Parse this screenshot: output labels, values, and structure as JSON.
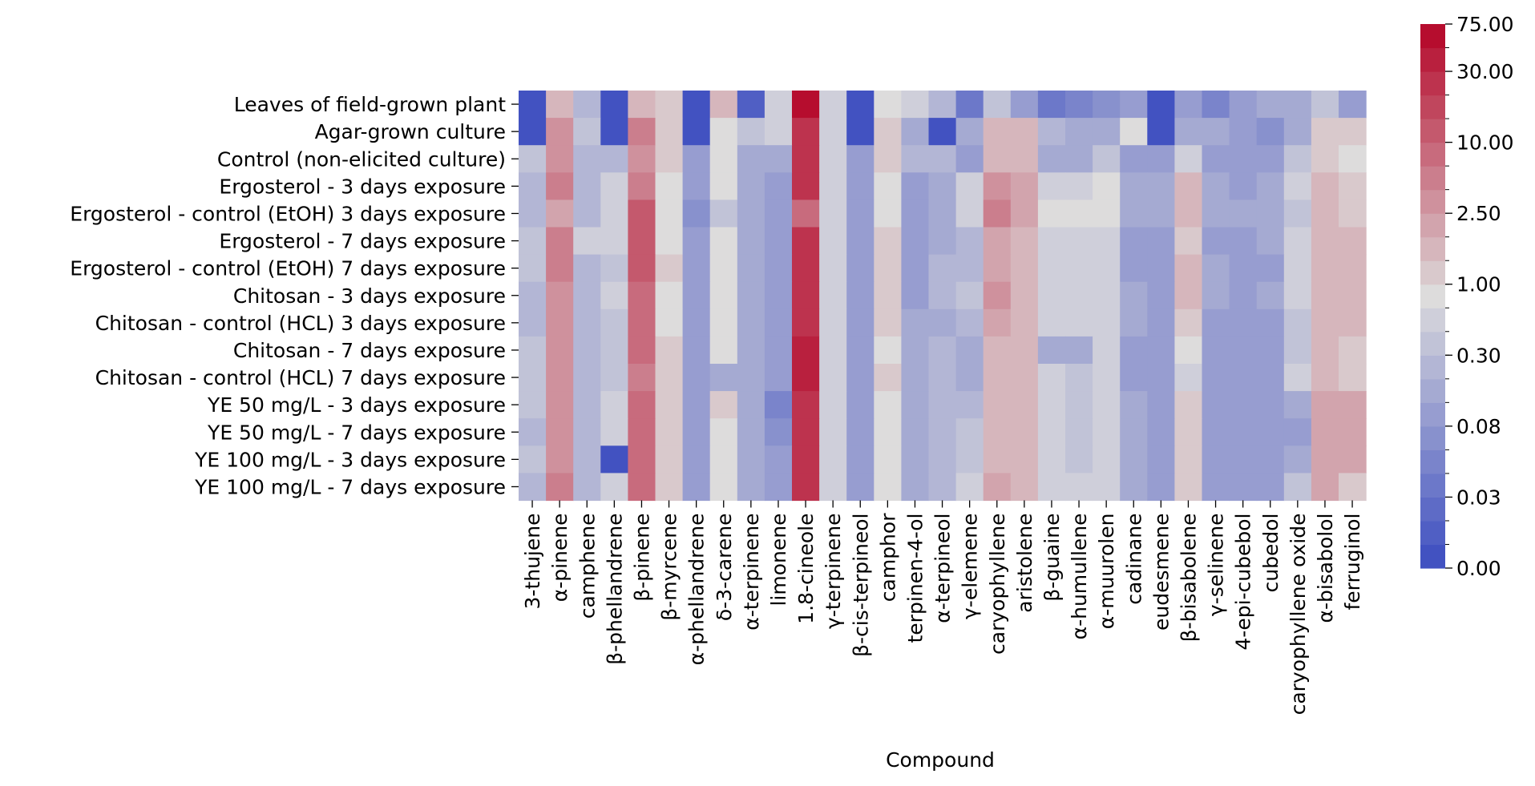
{
  "chart_data": {
    "type": "heatmap",
    "title": "",
    "xlabel": "Compound",
    "ylabel": "",
    "columns": [
      "3-thujene",
      "α-pinene",
      "camphene",
      "β-phellandrene",
      "β-pinene",
      "β-myrcene",
      "α-phellandrene",
      "δ-3-carene",
      "α-terpinene",
      "limonene",
      "1.8-cineole",
      "γ-terpinene",
      "β-cis-terpineol",
      "camphor",
      "terpinen-4-ol",
      "α-terpineol",
      "γ-elemene",
      "caryophyllene",
      "aristolene",
      "β-guaine",
      "α-humullene",
      "α-muurolen",
      "cadinane",
      "eudesmene",
      "β-bisabolene",
      "γ-selinene",
      "4-epi-cubebol",
      "cubedol",
      "caryophyllene oxide",
      "α-bisabolol",
      "ferruginol"
    ],
    "rows": [
      "Leaves of field-grown plant",
      "Agar-grown culture",
      "Control (non-elicited culture)",
      "Ergosterol - 3 days exposure",
      "Ergosterol - control (EtOH) 3 days exposure",
      "Ergosterol - 7 days exposure",
      "Ergosterol - control (EtOH) 7 days exposure",
      "Chitosan - 3 days exposure",
      "Chitosan - control (HCL) 3 days exposure",
      "Chitosan - 7 days exposure",
      "Chitosan - control (HCL) 7 days exposure",
      "YE 50 mg/L - 3 days exposure",
      "YE 50 mg/L - 7 days exposure",
      "YE 100 mg/L - 3 days exposure",
      "YE 100 mg/L - 7 days exposure"
    ],
    "levels": [
      [
        0,
        13,
        8,
        0,
        13,
        12,
        0,
        13,
        1,
        10,
        22,
        10,
        0,
        11,
        10,
        8,
        3,
        9,
        6,
        3,
        4,
        5,
        6,
        0,
        6,
        4,
        6,
        7,
        7,
        9,
        6
      ],
      [
        0,
        15,
        9,
        0,
        16,
        12,
        0,
        11,
        9,
        10,
        20,
        10,
        0,
        12,
        7,
        0,
        7,
        13,
        13,
        8,
        7,
        7,
        11,
        0,
        7,
        7,
        6,
        5,
        7,
        12,
        12
      ],
      [
        9,
        15,
        8,
        8,
        15,
        12,
        6,
        11,
        7,
        7,
        20,
        10,
        6,
        12,
        8,
        8,
        6,
        13,
        13,
        7,
        7,
        9,
        6,
        6,
        10,
        6,
        6,
        6,
        9,
        12,
        11
      ],
      [
        8,
        16,
        8,
        10,
        16,
        11,
        6,
        11,
        7,
        6,
        20,
        10,
        6,
        11,
        6,
        7,
        10,
        15,
        14,
        10,
        10,
        11,
        7,
        7,
        13,
        7,
        6,
        7,
        10,
        13,
        12
      ],
      [
        8,
        14,
        8,
        10,
        18,
        11,
        5,
        9,
        7,
        6,
        17,
        10,
        6,
        11,
        6,
        7,
        10,
        16,
        14,
        11,
        11,
        11,
        7,
        7,
        13,
        7,
        7,
        7,
        9,
        13,
        12
      ],
      [
        9,
        16,
        10,
        10,
        18,
        11,
        6,
        11,
        7,
        6,
        20,
        10,
        6,
        12,
        6,
        7,
        8,
        14,
        13,
        10,
        10,
        10,
        6,
        6,
        12,
        6,
        6,
        7,
        10,
        13,
        13
      ],
      [
        9,
        16,
        8,
        9,
        18,
        12,
        6,
        11,
        7,
        6,
        20,
        10,
        6,
        12,
        6,
        8,
        8,
        14,
        13,
        10,
        10,
        10,
        6,
        6,
        13,
        7,
        6,
        6,
        10,
        13,
        13
      ],
      [
        8,
        15,
        8,
        10,
        17,
        11,
        6,
        11,
        7,
        6,
        20,
        10,
        6,
        12,
        6,
        8,
        9,
        15,
        13,
        10,
        10,
        10,
        7,
        6,
        13,
        7,
        6,
        7,
        10,
        13,
        13
      ],
      [
        8,
        15,
        8,
        9,
        17,
        11,
        6,
        11,
        7,
        6,
        20,
        10,
        6,
        12,
        7,
        7,
        8,
        14,
        13,
        10,
        10,
        10,
        7,
        6,
        12,
        6,
        6,
        6,
        9,
        13,
        13
      ],
      [
        9,
        15,
        8,
        9,
        17,
        12,
        6,
        11,
        7,
        6,
        21,
        10,
        6,
        11,
        7,
        8,
        7,
        13,
        13,
        7,
        7,
        10,
        6,
        6,
        11,
        6,
        6,
        6,
        9,
        13,
        12
      ],
      [
        9,
        15,
        8,
        9,
        16,
        12,
        6,
        7,
        7,
        6,
        21,
        10,
        6,
        12,
        7,
        8,
        7,
        13,
        13,
        10,
        9,
        10,
        6,
        6,
        10,
        6,
        6,
        6,
        10,
        13,
        12
      ],
      [
        9,
        15,
        8,
        10,
        17,
        12,
        6,
        12,
        7,
        4,
        20,
        10,
        6,
        11,
        7,
        8,
        8,
        13,
        13,
        10,
        9,
        10,
        7,
        6,
        12,
        6,
        6,
        6,
        7,
        14,
        14
      ],
      [
        8,
        15,
        8,
        10,
        17,
        12,
        6,
        11,
        7,
        5,
        20,
        10,
        6,
        11,
        7,
        8,
        9,
        13,
        13,
        10,
        9,
        10,
        7,
        6,
        12,
        6,
        6,
        6,
        6,
        14,
        14
      ],
      [
        9,
        15,
        8,
        0,
        17,
        12,
        6,
        11,
        7,
        6,
        20,
        10,
        6,
        11,
        7,
        8,
        9,
        13,
        13,
        10,
        9,
        10,
        7,
        6,
        12,
        6,
        6,
        6,
        7,
        14,
        14
      ],
      [
        8,
        16,
        8,
        10,
        17,
        12,
        6,
        11,
        7,
        6,
        20,
        10,
        6,
        11,
        7,
        8,
        10,
        14,
        13,
        10,
        10,
        10,
        7,
        6,
        12,
        6,
        6,
        6,
        9,
        14,
        12
      ]
    ],
    "scale": {
      "n_levels": 23,
      "tick_labels": [
        "0.00",
        "0.03",
        "0.08",
        "0.30",
        "1.00",
        "2.50",
        "10.00",
        "30.00",
        "75.00"
      ],
      "tick_levels": [
        0,
        3,
        6,
        9,
        12,
        15,
        18,
        21,
        23
      ]
    },
    "colormap": "coolwarm",
    "colors": {
      "low": "#3b4cc0",
      "mid": "#dddcdc",
      "high": "#b40426"
    },
    "grid": false,
    "legend": "colorbar-right"
  }
}
